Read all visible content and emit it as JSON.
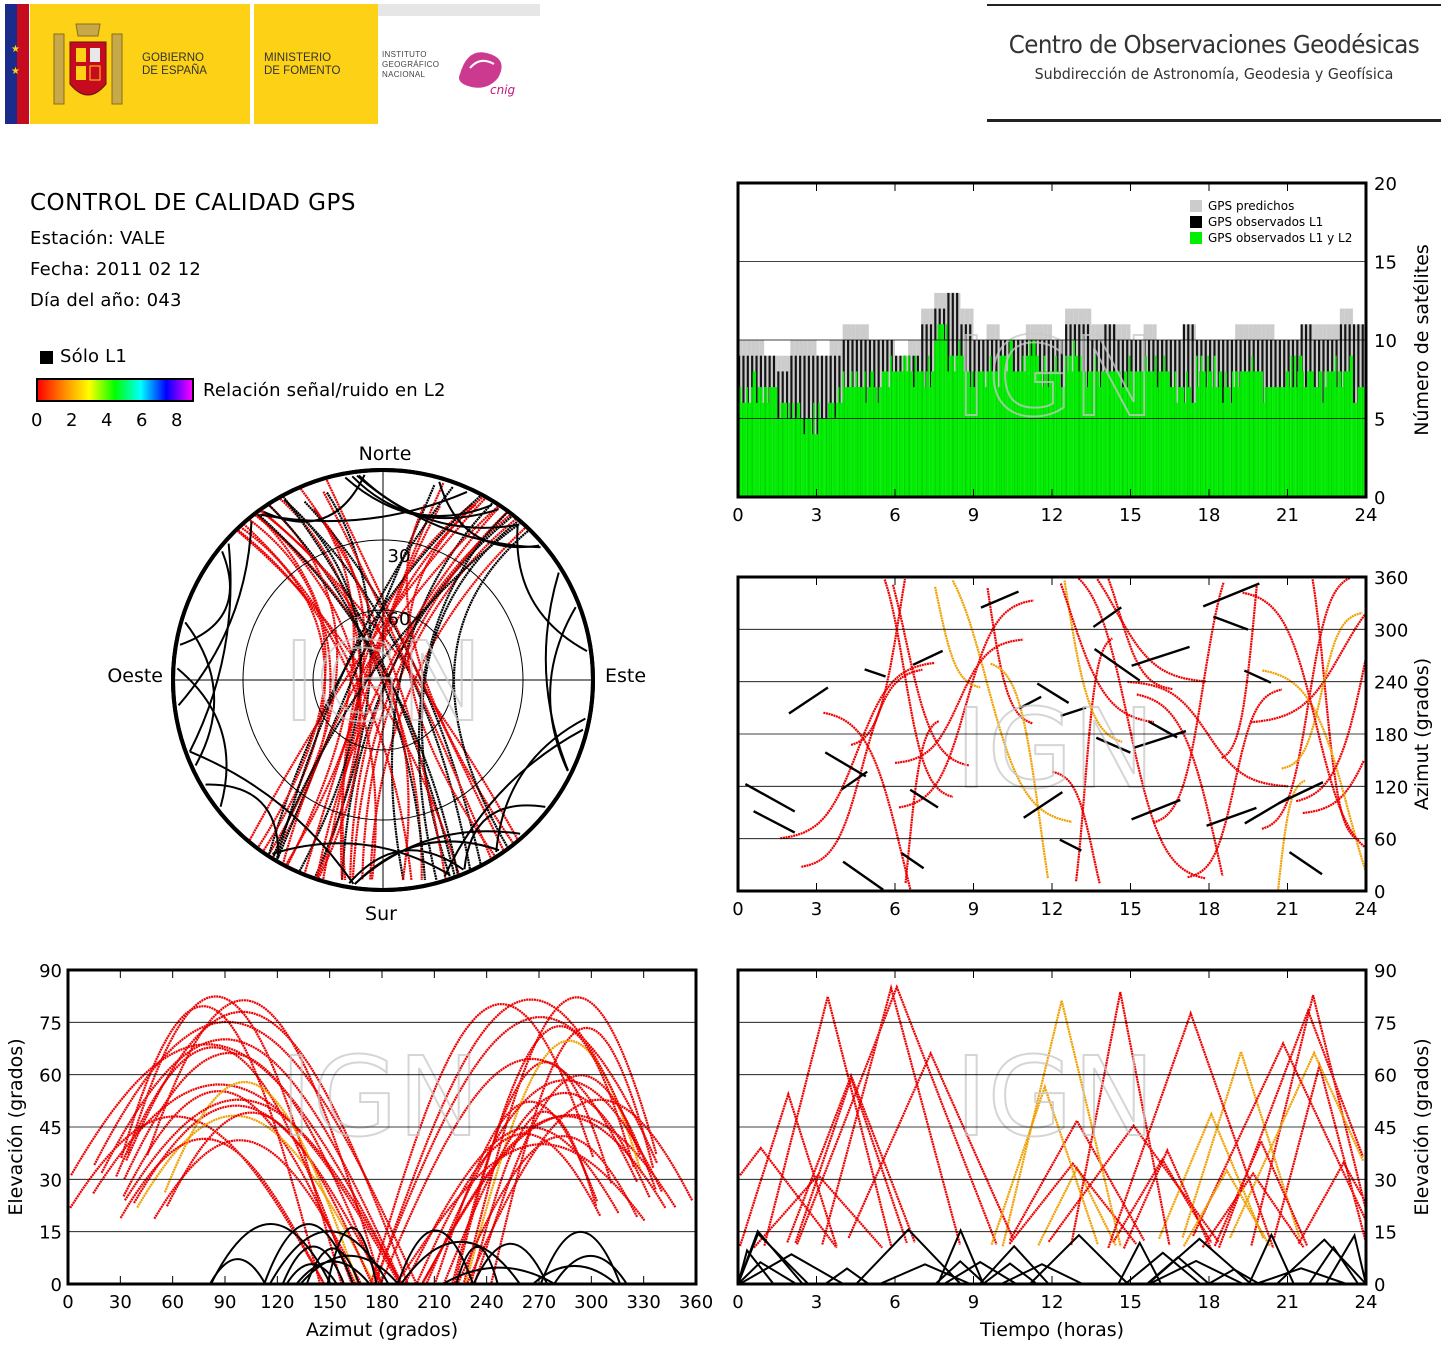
{
  "header": {
    "gobierno": [
      "GOBIERNO",
      "DE ESPAÑA"
    ],
    "ministerio": [
      "MINISTERIO",
      "DE FOMENTO"
    ],
    "instituto": [
      "INSTITUTO",
      "GEOGRÁFICO",
      "NACIONAL"
    ],
    "cnig": "cnig",
    "center_title": "Centro de Observaciones Geodésicas",
    "center_subtitle": "Subdirección de Astronomía, Geodesia y Geofísica"
  },
  "info": {
    "title": "CONTROL DE CALIDAD GPS",
    "station": "Estación: VALE",
    "date": "Fecha: 2011 02 12",
    "doy": "Día del año: 043"
  },
  "legend": {
    "l1_only": "Sólo L1",
    "snr_label": "Relación señal/ruido en L2",
    "snr_ticks": [
      "0",
      "2",
      "4",
      "6",
      "8"
    ]
  },
  "watermark": "IGN",
  "colors": {
    "red": "#ee0000",
    "orange": "#f0a000",
    "green": "#00ee00",
    "gray": "#cccccc",
    "black": "#000000"
  },
  "chart_data": [
    {
      "id": "satellites",
      "type": "area",
      "ylabel": "Número de satélites",
      "xlim": [
        0,
        24
      ],
      "ylim": [
        0,
        20
      ],
      "xticks": [
        "0",
        "3",
        "6",
        "9",
        "12",
        "15",
        "18",
        "21",
        "24"
      ],
      "yticks": [
        "0",
        "5",
        "10",
        "15",
        "20"
      ],
      "legend": [
        "GPS predichos",
        "GPS observados L1",
        "GPS observados L1 y L2"
      ],
      "legend_position": "top-right",
      "grid": "horizontal",
      "series": [
        {
          "name": "GPS predichos",
          "x": [
            0,
            0.5,
            1,
            1.5,
            2,
            2.5,
            3,
            3.5,
            4,
            4.5,
            5,
            5.5,
            6,
            6.5,
            7,
            7.5,
            8,
            8.5,
            9,
            9.5,
            10,
            10.5,
            11,
            11.5,
            12,
            12.5,
            13,
            13.5,
            14,
            14.5,
            15,
            15.5,
            16,
            16.5,
            17,
            17.5,
            18,
            18.5,
            19,
            19.5,
            20,
            20.5,
            21,
            21.5,
            22,
            22.5,
            23,
            23.5,
            24
          ],
          "y": [
            10,
            10,
            9,
            9,
            10,
            10,
            9,
            10,
            11,
            11,
            10,
            10,
            9,
            10,
            12,
            13,
            13,
            12,
            10,
            11,
            10,
            10,
            11,
            11,
            10,
            12,
            12,
            11,
            11,
            11,
            10,
            11,
            10,
            10,
            11,
            10,
            10,
            10,
            11,
            11,
            11,
            10,
            10,
            11,
            11,
            11,
            12,
            11,
            11
          ]
        },
        {
          "name": "GPS observados L1",
          "x": [
            0,
            0.5,
            1,
            1.5,
            2,
            2.5,
            3,
            3.5,
            4,
            4.5,
            5,
            5.5,
            6,
            6.5,
            7,
            7.5,
            8,
            8.5,
            9,
            9.5,
            10,
            10.5,
            11,
            11.5,
            12,
            12.5,
            13,
            13.5,
            14,
            14.5,
            15,
            15.5,
            16,
            16.5,
            17,
            17.5,
            18,
            18.5,
            19,
            19.5,
            20,
            20.5,
            21,
            21.5,
            22,
            22.5,
            23,
            23.5,
            24
          ],
          "y": [
            9,
            9,
            9,
            8,
            9,
            9,
            9,
            9,
            10,
            10,
            10,
            10,
            9,
            9,
            11,
            12,
            13,
            11,
            10,
            10,
            10,
            10,
            10,
            10,
            10,
            11,
            11,
            10,
            11,
            10,
            10,
            10,
            10,
            10,
            11,
            10,
            10,
            10,
            10,
            10,
            10,
            10,
            10,
            11,
            10,
            10,
            11,
            11,
            10
          ]
        },
        {
          "name": "GPS observados L1 y L2",
          "x": [
            0,
            0.5,
            1,
            1.5,
            2,
            2.5,
            3,
            3.5,
            4,
            4.5,
            5,
            5.5,
            6,
            6.5,
            7,
            7.5,
            8,
            8.5,
            9,
            9.5,
            10,
            10.5,
            11,
            11.5,
            12,
            12.5,
            13,
            13.5,
            14,
            14.5,
            15,
            15.5,
            16,
            16.5,
            17,
            17.5,
            18,
            18.5,
            19,
            19.5,
            20,
            20.5,
            21,
            21.5,
            22,
            22.5,
            23,
            23.5,
            24
          ],
          "y": [
            6,
            7,
            7,
            6,
            5,
            5,
            5,
            6,
            7,
            7,
            7,
            8,
            8,
            8,
            8,
            11,
            9,
            8,
            8,
            8,
            9,
            8,
            9,
            8,
            8,
            9,
            8,
            8,
            8,
            8,
            8,
            8,
            8,
            7,
            7,
            8,
            8,
            7,
            8,
            8,
            7,
            7,
            8,
            8,
            7,
            8,
            8,
            7,
            8
          ]
        }
      ]
    },
    {
      "id": "azimuth-time",
      "type": "scatter",
      "ylabel": "Azimut (grados)",
      "xlim": [
        0,
        24
      ],
      "ylim": [
        0,
        360
      ],
      "xticks": [
        "0",
        "3",
        "6",
        "9",
        "12",
        "15",
        "18",
        "21",
        "24"
      ],
      "yticks": [
        "0",
        "60",
        "120",
        "180",
        "240",
        "300",
        "360"
      ],
      "grid": "horizontal"
    },
    {
      "id": "elevation-azimuth",
      "type": "scatter",
      "xlabel": "Azimut (grados)",
      "ylabel": "Elevación (grados)",
      "xlim": [
        0,
        360
      ],
      "ylim": [
        0,
        90
      ],
      "xticks": [
        "0",
        "30",
        "60",
        "90",
        "120",
        "150",
        "180",
        "210",
        "240",
        "270",
        "300",
        "330",
        "360"
      ],
      "yticks": [
        "0",
        "15",
        "30",
        "45",
        "60",
        "75",
        "90"
      ],
      "grid": "horizontal"
    },
    {
      "id": "elevation-time",
      "type": "scatter",
      "xlabel": "Tiempo (horas)",
      "ylabel": "Elevación (grados)",
      "xlim": [
        0,
        24
      ],
      "ylim": [
        0,
        90
      ],
      "xticks": [
        "0",
        "3",
        "6",
        "9",
        "12",
        "15",
        "18",
        "21",
        "24"
      ],
      "yticks": [
        "0",
        "15",
        "30",
        "45",
        "60",
        "75",
        "90"
      ],
      "grid": "horizontal"
    },
    {
      "id": "skyplot",
      "type": "scatter",
      "labels": {
        "north": "Norte",
        "south": "Sur",
        "west": "Oeste",
        "east": "Este"
      },
      "rings": [
        "30",
        "60"
      ]
    }
  ]
}
